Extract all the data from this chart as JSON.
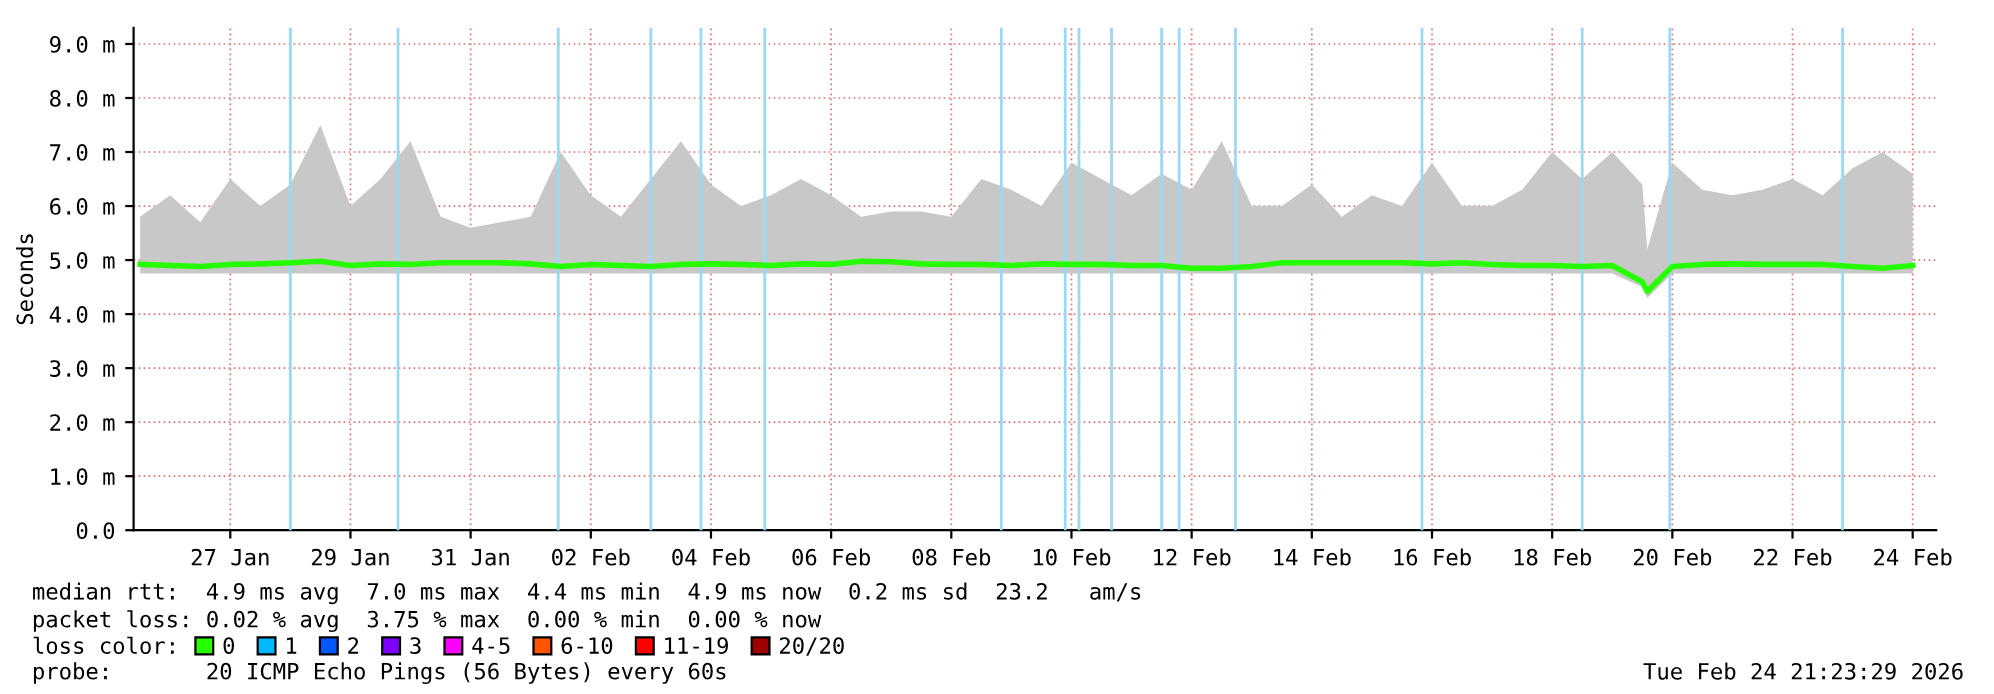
{
  "chart_data": {
    "type": "line",
    "ylabel": "Seconds",
    "legend_title": "loss color:",
    "legend": "bottom",
    "grid": true,
    "xlim": [
      "2026-01-25T21:23",
      "2026-02-24T21:23"
    ],
    "ylim": [
      0,
      9.3
    ],
    "yticks": [
      {
        "value": 0,
        "label": "0.0"
      },
      {
        "value": 1,
        "label": "1.0 m"
      },
      {
        "value": 2,
        "label": "2.0 m"
      },
      {
        "value": 3,
        "label": "3.0 m"
      },
      {
        "value": 4,
        "label": "4.0 m"
      },
      {
        "value": 5,
        "label": "5.0 m"
      },
      {
        "value": 6,
        "label": "6.0 m"
      },
      {
        "value": 7,
        "label": "7.0 m"
      },
      {
        "value": 8,
        "label": "8.0 m"
      },
      {
        "value": 9,
        "label": "9.0 m"
      }
    ],
    "xticks": [
      {
        "value": "2026-01-27T12:00",
        "label": "27 Jan"
      },
      {
        "value": "2026-01-29T12:00",
        "label": "29 Jan"
      },
      {
        "value": "2026-01-31T12:00",
        "label": "31 Jan"
      },
      {
        "value": "2026-02-02T12:00",
        "label": "02 Feb"
      },
      {
        "value": "2026-02-04T12:00",
        "label": "04 Feb"
      },
      {
        "value": "2026-02-06T12:00",
        "label": "06 Feb"
      },
      {
        "value": "2026-02-08T12:00",
        "label": "08 Feb"
      },
      {
        "value": "2026-02-10T12:00",
        "label": "10 Feb"
      },
      {
        "value": "2026-02-12T12:00",
        "label": "12 Feb"
      },
      {
        "value": "2026-02-14T12:00",
        "label": "14 Feb"
      },
      {
        "value": "2026-02-16T12:00",
        "label": "16 Feb"
      },
      {
        "value": "2026-02-18T12:00",
        "label": "18 Feb"
      },
      {
        "value": "2026-02-20T12:00",
        "label": "20 Feb"
      },
      {
        "value": "2026-02-22T12:00",
        "label": "22 Feb"
      },
      {
        "value": "2026-02-24T12:00",
        "label": "24 Feb"
      }
    ],
    "x": [
      "2026-01-26T00:00",
      "2026-01-26T12:00",
      "2026-01-27T00:00",
      "2026-01-27T12:00",
      "2026-01-28T00:00",
      "2026-01-28T12:00",
      "2026-01-29T00:00",
      "2026-01-29T12:00",
      "2026-01-30T00:00",
      "2026-01-30T12:00",
      "2026-01-31T00:00",
      "2026-01-31T12:00",
      "2026-02-01T00:00",
      "2026-02-01T12:00",
      "2026-02-02T00:00",
      "2026-02-02T12:00",
      "2026-02-03T00:00",
      "2026-02-03T12:00",
      "2026-02-04T00:00",
      "2026-02-04T12:00",
      "2026-02-05T00:00",
      "2026-02-05T12:00",
      "2026-02-06T00:00",
      "2026-02-06T12:00",
      "2026-02-07T00:00",
      "2026-02-07T12:00",
      "2026-02-08T00:00",
      "2026-02-08T12:00",
      "2026-02-09T00:00",
      "2026-02-09T12:00",
      "2026-02-10T00:00",
      "2026-02-10T12:00",
      "2026-02-11T00:00",
      "2026-02-11T12:00",
      "2026-02-12T00:00",
      "2026-02-12T12:00",
      "2026-02-13T00:00",
      "2026-02-13T12:00",
      "2026-02-14T00:00",
      "2026-02-14T12:00",
      "2026-02-15T00:00",
      "2026-02-15T12:00",
      "2026-02-16T00:00",
      "2026-02-16T12:00",
      "2026-02-17T00:00",
      "2026-02-17T12:00",
      "2026-02-18T00:00",
      "2026-02-18T12:00",
      "2026-02-19T00:00",
      "2026-02-19T12:00",
      "2026-02-20T00:00",
      "2026-02-20T02:00",
      "2026-02-20T12:00",
      "2026-02-21T00:00",
      "2026-02-21T12:00",
      "2026-02-22T00:00",
      "2026-02-22T12:00",
      "2026-02-23T00:00",
      "2026-02-23T12:00",
      "2026-02-24T00:00",
      "2026-02-24T12:00"
    ],
    "series": [
      {
        "name": "0",
        "color": "#26ff00",
        "values": [
          4.92,
          4.9,
          4.88,
          4.92,
          4.93,
          4.95,
          4.98,
          4.9,
          4.93,
          4.92,
          4.95,
          4.95,
          4.95,
          4.93,
          4.88,
          4.92,
          4.9,
          4.88,
          4.92,
          4.93,
          4.92,
          4.9,
          4.93,
          4.92,
          4.98,
          4.97,
          4.93,
          4.92,
          4.92,
          4.9,
          4.93,
          4.92,
          4.92,
          4.9,
          4.9,
          4.85,
          4.85,
          4.88,
          4.95,
          4.95,
          4.95,
          4.95,
          4.95,
          4.93,
          4.95,
          4.92,
          4.9,
          4.9,
          4.88,
          4.9,
          4.6,
          4.42,
          4.88,
          4.92,
          4.93,
          4.92,
          4.92,
          4.92,
          4.88,
          4.85,
          4.9
        ],
        "lower": [
          4.75,
          4.75,
          4.75,
          4.75,
          4.75,
          4.75,
          4.75,
          4.75,
          4.75,
          4.75,
          4.75,
          4.75,
          4.75,
          4.75,
          4.75,
          4.75,
          4.75,
          4.75,
          4.75,
          4.75,
          4.75,
          4.75,
          4.75,
          4.75,
          4.75,
          4.75,
          4.75,
          4.75,
          4.75,
          4.75,
          4.75,
          4.75,
          4.75,
          4.75,
          4.75,
          4.75,
          4.75,
          4.75,
          4.75,
          4.75,
          4.75,
          4.75,
          4.75,
          4.75,
          4.75,
          4.75,
          4.75,
          4.75,
          4.75,
          4.75,
          4.5,
          4.3,
          4.75,
          4.75,
          4.75,
          4.75,
          4.75,
          4.75,
          4.75,
          4.75,
          4.75
        ],
        "upper": [
          5.8,
          6.2,
          5.7,
          6.5,
          6.0,
          6.4,
          7.5,
          6.0,
          6.5,
          7.2,
          5.8,
          5.6,
          5.7,
          5.8,
          7.0,
          6.2,
          5.8,
          6.5,
          7.2,
          6.4,
          6.0,
          6.2,
          6.5,
          6.2,
          5.8,
          5.9,
          5.9,
          5.8,
          6.5,
          6.3,
          6.0,
          6.8,
          6.5,
          6.2,
          6.6,
          6.3,
          7.2,
          6.0,
          6.0,
          6.4,
          5.8,
          6.2,
          6.0,
          6.8,
          6.0,
          6.0,
          6.3,
          7.0,
          6.5,
          7.0,
          6.4,
          5.2,
          6.8,
          6.3,
          6.2,
          6.3,
          6.5,
          6.2,
          6.7,
          7.0,
          6.6
        ]
      },
      {
        "name": "1",
        "color": "#00b8ff",
        "values": [
          null,
          null,
          null,
          null,
          null,
          null,
          null,
          null,
          null,
          null,
          null,
          null,
          null,
          null,
          null,
          null,
          null,
          null,
          null,
          null,
          null,
          null,
          null,
          null,
          null,
          null,
          null,
          null,
          null,
          null,
          null,
          null,
          null,
          null,
          null,
          null,
          null,
          null,
          null,
          null,
          null,
          null,
          null,
          null,
          null,
          null,
          null,
          null,
          null,
          null,
          null,
          null,
          null,
          null,
          null,
          null,
          null,
          null,
          null,
          null,
          null
        ]
      },
      {
        "name": "2",
        "color": "#0059ff",
        "values": [
          null,
          null,
          null,
          null,
          null,
          null,
          null,
          null,
          null,
          null,
          null,
          null,
          null,
          null,
          null,
          null,
          null,
          null,
          null,
          null,
          null,
          null,
          null,
          null,
          null,
          null,
          null,
          null,
          null,
          null,
          null,
          null,
          null,
          null,
          null,
          null,
          null,
          null,
          null,
          null,
          null,
          null,
          null,
          null,
          null,
          null,
          null,
          null,
          null,
          null,
          null,
          null,
          null,
          null,
          null,
          null,
          null,
          null,
          null,
          null,
          null
        ]
      },
      {
        "name": "3",
        "color": "#7e00ff",
        "values": [
          null,
          null,
          null,
          null,
          null,
          null,
          null,
          null,
          null,
          null,
          null,
          null,
          null,
          null,
          null,
          null,
          null,
          null,
          null,
          null,
          null,
          null,
          null,
          null,
          null,
          null,
          null,
          null,
          null,
          null,
          null,
          null,
          null,
          null,
          null,
          null,
          null,
          null,
          null,
          null,
          null,
          null,
          null,
          null,
          null,
          null,
          null,
          null,
          null,
          null,
          null,
          null,
          null,
          null,
          null,
          null,
          null,
          null,
          null,
          null,
          null
        ]
      },
      {
        "name": "4-5",
        "color": "#ff00ff",
        "values": [
          null,
          null,
          null,
          null,
          null,
          null,
          null,
          null,
          null,
          null,
          null,
          null,
          null,
          null,
          null,
          null,
          null,
          null,
          null,
          null,
          null,
          null,
          null,
          null,
          null,
          null,
          null,
          null,
          null,
          null,
          null,
          null,
          null,
          null,
          null,
          null,
          null,
          null,
          null,
          null,
          null,
          null,
          null,
          null,
          null,
          null,
          null,
          null,
          null,
          null,
          null,
          null,
          null,
          null,
          null,
          null,
          null,
          null,
          null,
          null,
          null
        ]
      },
      {
        "name": "6-10",
        "color": "#ff5500",
        "values": [
          null,
          null,
          null,
          null,
          null,
          null,
          null,
          null,
          null,
          null,
          null,
          null,
          null,
          null,
          null,
          null,
          null,
          null,
          null,
          null,
          null,
          null,
          null,
          null,
          null,
          null,
          null,
          null,
          null,
          null,
          null,
          null,
          null,
          null,
          null,
          null,
          null,
          null,
          null,
          null,
          null,
          null,
          null,
          null,
          null,
          null,
          null,
          null,
          null,
          null,
          null,
          null,
          null,
          null,
          null,
          null,
          null,
          null,
          null,
          null,
          null
        ]
      },
      {
        "name": "11-19",
        "color": "#ff0000",
        "values": [
          null,
          null,
          null,
          null,
          null,
          null,
          null,
          null,
          null,
          null,
          null,
          null,
          null,
          null,
          null,
          null,
          null,
          null,
          null,
          null,
          null,
          null,
          null,
          null,
          null,
          null,
          null,
          null,
          null,
          null,
          null,
          null,
          null,
          null,
          null,
          null,
          null,
          null,
          null,
          null,
          null,
          null,
          null,
          null,
          null,
          null,
          null,
          null,
          null,
          null,
          null,
          null,
          null,
          null,
          null,
          null,
          null,
          null,
          null,
          null,
          null
        ]
      },
      {
        "name": "20/20",
        "color": "#a10000",
        "values": [
          null,
          null,
          null,
          null,
          null,
          null,
          null,
          null,
          null,
          null,
          null,
          null,
          null,
          null,
          null,
          null,
          null,
          null,
          null,
          null,
          null,
          null,
          null,
          null,
          null,
          null,
          null,
          null,
          null,
          null,
          null,
          null,
          null,
          null,
          null,
          null,
          null,
          null,
          null,
          null,
          null,
          null,
          null,
          null,
          null,
          null,
          null,
          null,
          null,
          null,
          null,
          null,
          null,
          null,
          null,
          null,
          null,
          null,
          null,
          null,
          null
        ]
      }
    ],
    "ref_lines": [
      {
        "axis": "x",
        "value": "2026-01-28T12:00",
        "color": "#9ad9f2"
      },
      {
        "axis": "x",
        "value": "2026-01-30T07:00",
        "color": "#9ad9f2"
      },
      {
        "axis": "x",
        "value": "2026-02-01T23:00",
        "color": "#9ad9f2"
      },
      {
        "axis": "x",
        "value": "2026-02-03T12:00",
        "color": "#9ad9f2"
      },
      {
        "axis": "x",
        "value": "2026-02-04T08:00",
        "color": "#9ad9f2"
      },
      {
        "axis": "x",
        "value": "2026-02-05T09:30",
        "color": "#9ad9f2"
      },
      {
        "axis": "x",
        "value": "2026-02-09T08:00",
        "color": "#9ad9f2"
      },
      {
        "axis": "x",
        "value": "2026-02-10T09:30",
        "color": "#9ad9f2"
      },
      {
        "axis": "x",
        "value": "2026-02-10T15:00",
        "color": "#9ad9f2"
      },
      {
        "axis": "x",
        "value": "2026-02-11T04:00",
        "color": "#9ad9f2"
      },
      {
        "axis": "x",
        "value": "2026-02-12T00:00",
        "color": "#9ad9f2"
      },
      {
        "axis": "x",
        "value": "2026-02-12T07:00",
        "color": "#9ad9f2"
      },
      {
        "axis": "x",
        "value": "2026-02-13T05:30",
        "color": "#9ad9f2"
      },
      {
        "axis": "x",
        "value": "2026-02-16T08:00",
        "color": "#9ad9f2"
      },
      {
        "axis": "x",
        "value": "2026-02-19T00:00",
        "color": "#9ad9f2"
      },
      {
        "axis": "x",
        "value": "2026-02-20T11:00",
        "color": "#9ad9f2"
      },
      {
        "axis": "x",
        "value": "2026-02-23T08:00",
        "color": "#9ad9f2"
      }
    ],
    "annotations": [
      "median rtt:  4.9 ms avg  7.0 ms max  4.4 ms min  4.9 ms now  0.2 ms sd  23.2   am/s",
      "packet loss: 0.02 % avg  3.75 % max  0.00 % min  0.00 % now",
      "probe:       20 ICMP Echo Pings (56 Bytes) every 60s",
      "Tue Feb 24 21:23:29 2026"
    ]
  }
}
